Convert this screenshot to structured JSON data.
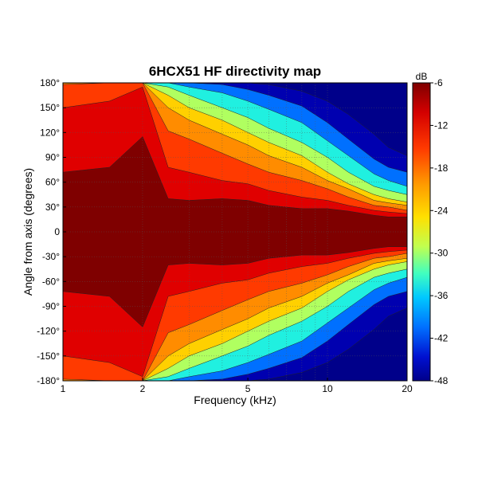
{
  "chart_data": {
    "type": "heatmap",
    "title": "6HCX51 HF directivity map",
    "xlabel": "Frequency (kHz)",
    "ylabel": "Angle from axis (degrees)",
    "x_scale": "log",
    "xlim": [
      1,
      20
    ],
    "ylim": [
      -180,
      180
    ],
    "x_ticks": [
      "1",
      "2",
      "5",
      "10",
      "20"
    ],
    "x_tick_values": [
      1,
      2,
      5,
      10,
      20
    ],
    "y_ticks": [
      "180°",
      "150°",
      "120°",
      "90°",
      "60°",
      "30°",
      "0",
      "-30°",
      "-60°",
      "-90°",
      "-120°",
      "-150°",
      "-180°"
    ],
    "y_tick_values": [
      180,
      150,
      120,
      90,
      60,
      30,
      0,
      -30,
      -60,
      -90,
      -120,
      -150,
      -180
    ],
    "grid": true,
    "colorbar": {
      "unit": "dB",
      "range": [
        -48,
        -6
      ],
      "ticks": [
        "-6",
        "-12",
        "-18",
        "-24",
        "-30",
        "-36",
        "-42",
        "-48"
      ],
      "tick_values": [
        -6,
        -12,
        -18,
        -24,
        -30,
        -36,
        -42,
        -48
      ]
    },
    "contour_levels": [
      -6,
      -9,
      -12,
      -15,
      -18,
      -21,
      -24,
      -27,
      -30,
      -33,
      -36,
      -39,
      -42,
      -45,
      -48
    ],
    "level_colors": [
      "#7f0000",
      "#e00000",
      "#ff3a00",
      "#ff8c00",
      "#ffd000",
      "#e8ff40",
      "#b0ff60",
      "#60ffa0",
      "#20f0e0",
      "#00b8ff",
      "#0070ff",
      "#0030e0",
      "#0000b0",
      "#00008a"
    ],
    "frequencies_khz": [
      1,
      1.5,
      2,
      2.5,
      3,
      4,
      5,
      6,
      8,
      10,
      12,
      15,
      17,
      20
    ],
    "contour_angles_deg": {
      "-6": [
        72,
        78,
        115,
        40,
        38,
        40,
        38,
        32,
        28,
        28,
        25,
        20,
        18,
        18
      ],
      "-9": [
        150,
        158,
        175,
        78,
        72,
        62,
        58,
        50,
        42,
        38,
        32,
        26,
        24,
        22
      ],
      "-12": [
        178,
        180,
        180,
        122,
        112,
        95,
        82,
        72,
        62,
        52,
        42,
        32,
        30,
        26
      ],
      "-15": [
        180,
        180,
        180,
        150,
        135,
        118,
        105,
        92,
        78,
        62,
        52,
        38,
        35,
        32
      ],
      "-18": [
        180,
        180,
        180,
        165,
        150,
        135,
        120,
        108,
        92,
        72,
        58,
        45,
        40,
        36
      ],
      "-24": [
        180,
        180,
        180,
        175,
        165,
        150,
        138,
        125,
        108,
        90,
        72,
        55,
        50,
        45
      ],
      "-30": [
        180,
        180,
        180,
        180,
        175,
        168,
        158,
        148,
        132,
        110,
        92,
        70,
        62,
        55
      ],
      "-36": [
        180,
        180,
        180,
        180,
        180,
        178,
        172,
        165,
        152,
        132,
        112,
        88,
        78,
        72
      ],
      "-42": [
        180,
        180,
        180,
        180,
        180,
        180,
        180,
        178,
        170,
        158,
        142,
        118,
        102,
        92
      ]
    }
  }
}
